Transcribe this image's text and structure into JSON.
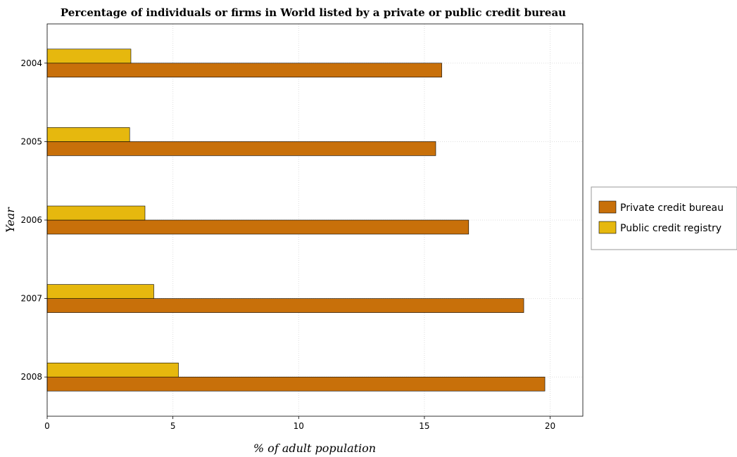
{
  "chart_data": {
    "type": "bar",
    "orientation": "horizontal",
    "title": "Percentage of individuals or firms in World listed by a private or public credit bureau",
    "xlabel": "% of adult population",
    "ylabel": "Year",
    "categories": [
      "2004",
      "2005",
      "2006",
      "2007",
      "2008"
    ],
    "xlim": [
      0,
      21.3
    ],
    "xticks": [
      "0",
      "5",
      "10",
      "15",
      "20"
    ],
    "grid": true,
    "legend_position": "right",
    "series": [
      {
        "name": "Private credit bureau",
        "color": "#c8700a",
        "values": [
          15.69,
          15.45,
          16.76,
          18.95,
          19.79
        ]
      },
      {
        "name": "Public credit registry",
        "color": "#e6b80e",
        "values": [
          3.33,
          3.28,
          3.89,
          4.24,
          5.22
        ]
      }
    ]
  }
}
